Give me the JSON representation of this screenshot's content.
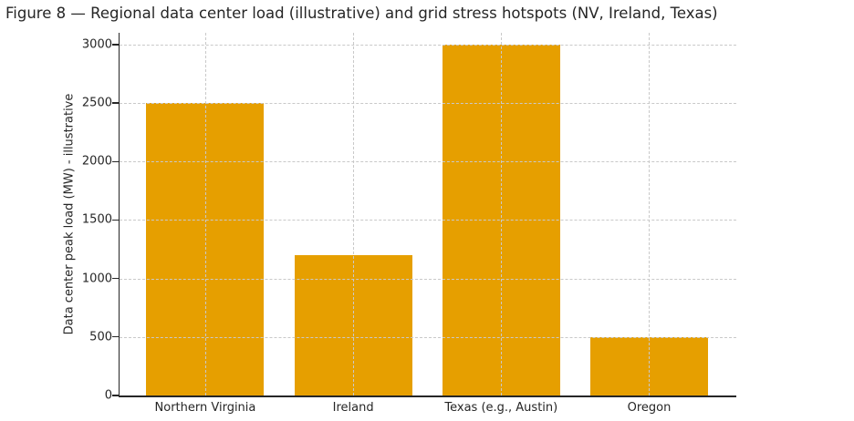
{
  "chart_data": {
    "type": "bar",
    "title": "Figure 8 — Regional data center load (illustrative) and grid stress hotspots (NV, Ireland, Texas)",
    "categories": [
      "Northern Virginia",
      "Ireland",
      "Texas (e.g., Austin)",
      "Oregon"
    ],
    "values": [
      2500,
      1200,
      3000,
      500
    ],
    "xlabel": "",
    "ylabel": "Data center peak load (MW) - illustrative",
    "yticks": [
      0,
      500,
      1000,
      1500,
      2000,
      2500,
      3000
    ],
    "ylim": [
      0,
      3100
    ],
    "grid": "dashed-both-axes-above-bars",
    "legend_position": "none",
    "colors": {
      "bar": "#E69F00",
      "grid": "#c9c9c9",
      "axis": "#262626",
      "text": "#262626",
      "background": "#ffffff"
    }
  }
}
